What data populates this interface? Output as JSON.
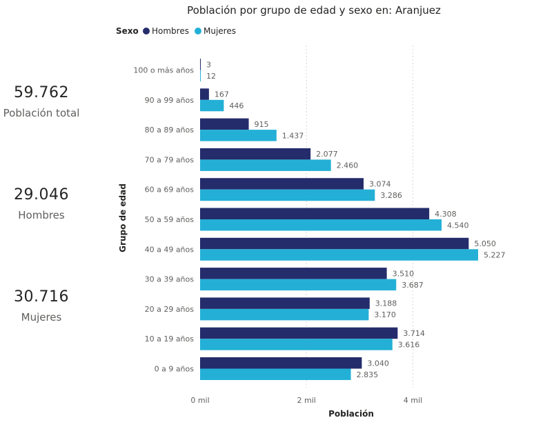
{
  "kpis": [
    {
      "value": "59.762",
      "label": "Población total"
    },
    {
      "value": "29.046",
      "label": "Hombres"
    },
    {
      "value": "30.716",
      "label": "Mujeres"
    }
  ],
  "legend": {
    "title": "Sexo"
  },
  "colors": {
    "hombres": "#252c6b",
    "mujeres": "#24b0d6"
  },
  "chart_data": {
    "type": "bar",
    "orientation": "horizontal",
    "title": "Población por grupo de edad y sexo en: Aranjuez",
    "xlabel": "Población",
    "ylabel": "Grupo de edad",
    "categories": [
      "100 o más años",
      "90 a 99 años",
      "80 a 89 años",
      "70 a 79 años",
      "60 a 69 años",
      "50 a 59 años",
      "40 a 49 años",
      "30 a 39 años",
      "20 a 29 años",
      "10 a 19 años",
      "0 a 9 años"
    ],
    "series": [
      {
        "name": "Hombres",
        "values": [
          3,
          167,
          915,
          2077,
          3074,
          4308,
          5050,
          3510,
          3188,
          3714,
          3040
        ],
        "labels": [
          "3",
          "167",
          "915",
          "2.077",
          "3.074",
          "4.308",
          "5.050",
          "3.510",
          "3.188",
          "3.714",
          "3.040"
        ]
      },
      {
        "name": "Mujeres",
        "values": [
          12,
          446,
          1437,
          2460,
          3286,
          4540,
          5227,
          3687,
          3170,
          3616,
          2835
        ],
        "labels": [
          "12",
          "446",
          "1.437",
          "2.460",
          "3.286",
          "4.540",
          "5.227",
          "3.687",
          "3.170",
          "3.616",
          "2.835"
        ]
      }
    ],
    "xticks": [
      0,
      2000,
      4000
    ],
    "xtick_labels": [
      "0 mil",
      "2 mil",
      "4 mil"
    ],
    "xlim": [
      0,
      5400
    ],
    "legend_position": "top-left",
    "grid": true
  }
}
